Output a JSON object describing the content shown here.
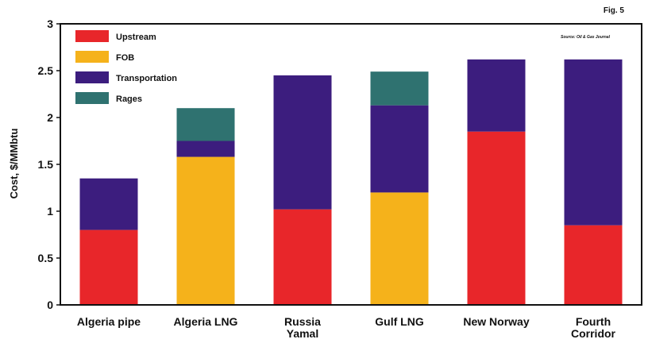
{
  "fig_label": "Fig. 5",
  "source_note": "Source: Oil & Gas Journal",
  "chart_data": {
    "type": "bar",
    "stacked": true,
    "categories": [
      "Algeria pipe",
      "Algeria LNG",
      "Russia Yamal",
      "Gulf LNG",
      "New Norway",
      "Fourth Corridor"
    ],
    "category_lines": [
      [
        "Algeria pipe"
      ],
      [
        "Algeria LNG"
      ],
      [
        "Russia",
        "Yamal"
      ],
      [
        "Gulf LNG"
      ],
      [
        "New Norway"
      ],
      [
        "Fourth",
        "Corridor"
      ]
    ],
    "series": [
      {
        "name": "Upstream",
        "color": "#e8262a",
        "values": [
          0.8,
          0,
          1.02,
          0,
          1.85,
          0.85
        ]
      },
      {
        "name": "FOB",
        "color": "#f5b21b",
        "values": [
          0,
          1.58,
          0,
          1.2,
          0,
          0
        ]
      },
      {
        "name": "Transportation",
        "color": "#3c1d7e",
        "values": [
          0.55,
          0.17,
          1.43,
          0.93,
          0.77,
          1.77
        ]
      },
      {
        "name": "Rages",
        "color": "#2f7270",
        "values": [
          0,
          0.35,
          0,
          0.36,
          0,
          0
        ]
      }
    ],
    "ylabel": "Cost, $/MMbtu",
    "xlabel": "",
    "ylim": [
      0,
      3
    ],
    "yticks": [
      "0",
      "0.5",
      "1",
      "1.5",
      "2",
      "2.5",
      "3"
    ],
    "grid": false,
    "legend_position": "top-left"
  }
}
